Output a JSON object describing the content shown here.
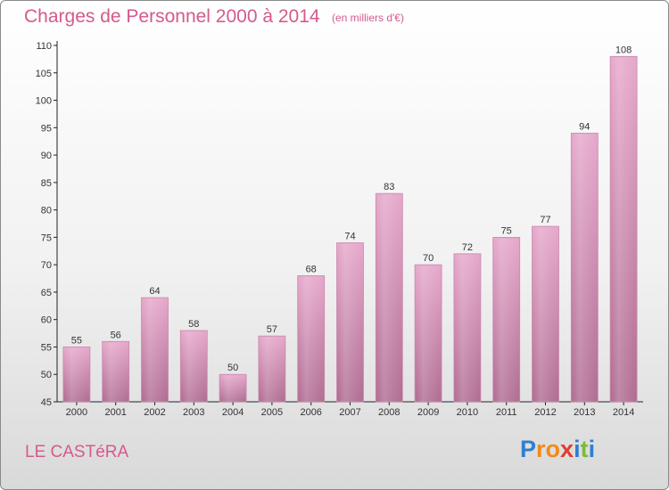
{
  "chart_data": {
    "type": "bar",
    "title": "Charges de Personnel 2000 à 2014",
    "subtitle": "(en milliers d'€)",
    "categories": [
      "2000",
      "2001",
      "2002",
      "2003",
      "2004",
      "2005",
      "2006",
      "2007",
      "2008",
      "2009",
      "2010",
      "2011",
      "2012",
      "2013",
      "2014"
    ],
    "values": [
      55,
      56,
      64,
      58,
      50,
      57,
      68,
      74,
      83,
      70,
      72,
      75,
      77,
      94,
      108
    ],
    "ylim": [
      45,
      110
    ],
    "yticks": [
      45,
      50,
      55,
      60,
      65,
      70,
      75,
      80,
      85,
      90,
      95,
      100,
      105,
      110
    ],
    "grid": false,
    "data_labels": true,
    "bar_color": "#d98bb5"
  },
  "place_name": "LE CASTéRA",
  "logo": {
    "text": "Proxiti",
    "letters": [
      {
        "ch": "P",
        "color": "#2f7fd1"
      },
      {
        "ch": "r",
        "color": "#f08a1c"
      },
      {
        "ch": "o",
        "color": "#f08a1c"
      },
      {
        "ch": "x",
        "color": "#e23b2e"
      },
      {
        "ch": "i",
        "color": "#2f7fd1"
      },
      {
        "ch": "t",
        "color": "#7dbb33"
      },
      {
        "ch": "i",
        "color": "#2f7fd1"
      }
    ]
  }
}
